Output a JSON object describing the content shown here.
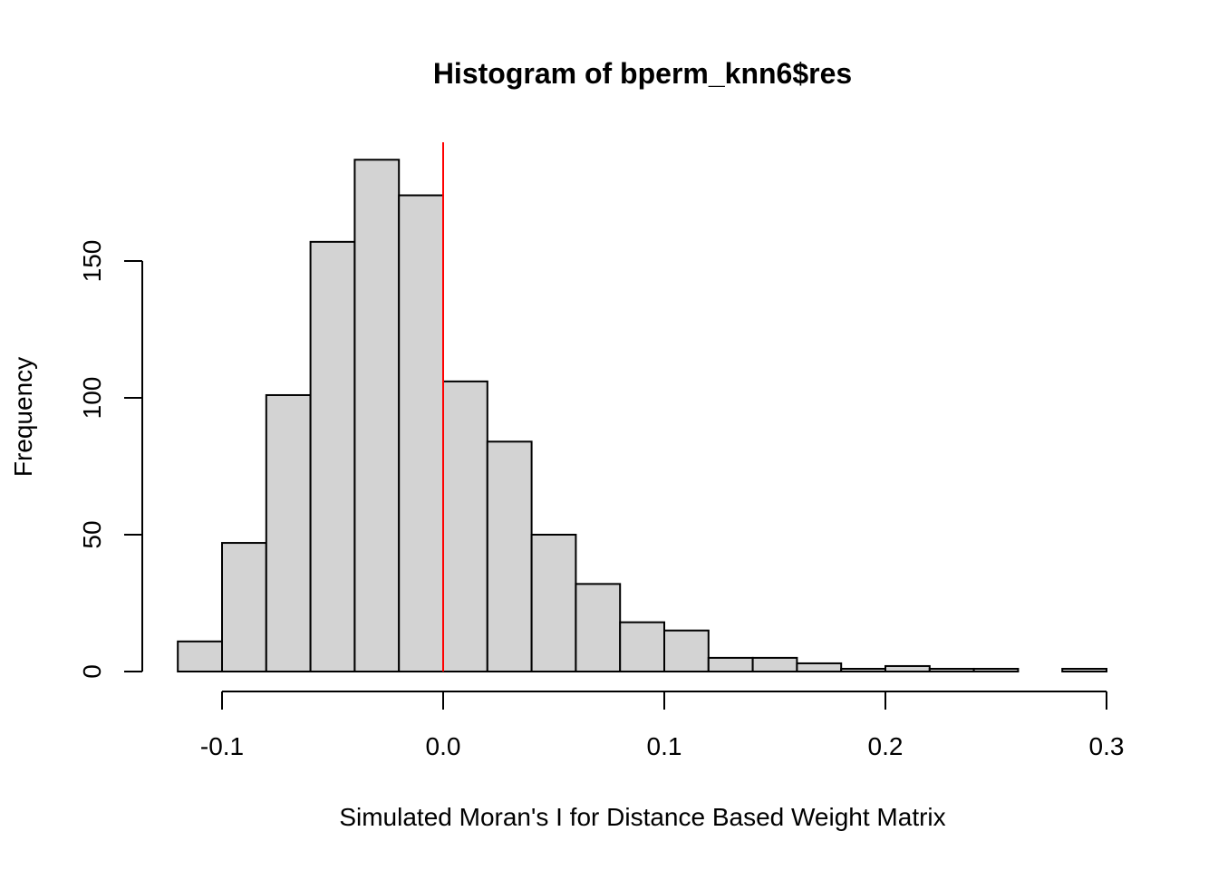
{
  "chart_data": {
    "type": "bar",
    "title": "Histogram of bperm_knn6$res",
    "xlabel": "Simulated Moran's I for Distance Based Weight Matrix",
    "ylabel": "Frequency",
    "bin_edges": [
      -0.12,
      -0.1,
      -0.08,
      -0.06,
      -0.04,
      -0.02,
      0.0,
      0.02,
      0.04,
      0.06,
      0.08,
      0.1,
      0.12,
      0.14,
      0.16,
      0.18,
      0.2,
      0.22,
      0.24,
      0.26,
      0.28,
      0.3
    ],
    "values": [
      11,
      47,
      101,
      157,
      187,
      174,
      106,
      84,
      50,
      32,
      18,
      15,
      5,
      5,
      3,
      1,
      2,
      1,
      1,
      0,
      1
    ],
    "xlim": [
      -0.1,
      0.3
    ],
    "ylim": [
      0,
      150
    ],
    "x_ticks": [
      -0.1,
      0.0,
      0.1,
      0.2,
      0.3
    ],
    "x_tick_labels": [
      "-0.1",
      "0.0",
      "0.1",
      "0.2",
      "0.3"
    ],
    "y_ticks": [
      0,
      50,
      100,
      150
    ],
    "y_tick_labels": [
      "0",
      "50",
      "100",
      "150"
    ],
    "reference_line": {
      "x": 0.0,
      "color": "#ff0000"
    },
    "bar_fill": "#d3d3d3",
    "grid": false
  }
}
